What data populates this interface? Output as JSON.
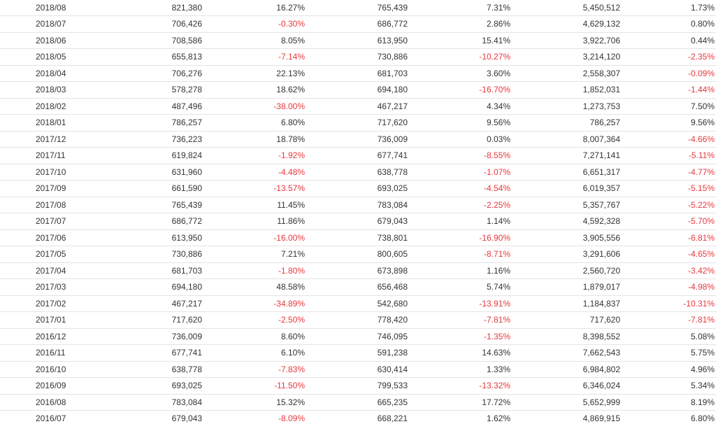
{
  "colors": {
    "text": "#333333",
    "negative": "#e8383d",
    "border": "#e4e4e4"
  },
  "rows": [
    {
      "date": "2018/08",
      "v1": "821,380",
      "p1": "16.27%",
      "v2": "765,439",
      "p2": "7.31%",
      "v3": "5,450,512",
      "p3": "1.73%"
    },
    {
      "date": "2018/07",
      "v1": "706,426",
      "p1": "-0.30%",
      "v2": "686,772",
      "p2": "2.86%",
      "v3": "4,629,132",
      "p3": "0.80%"
    },
    {
      "date": "2018/06",
      "v1": "708,586",
      "p1": "8.05%",
      "v2": "613,950",
      "p2": "15.41%",
      "v3": "3,922,706",
      "p3": "0.44%"
    },
    {
      "date": "2018/05",
      "v1": "655,813",
      "p1": "-7.14%",
      "v2": "730,886",
      "p2": "-10.27%",
      "v3": "3,214,120",
      "p3": "-2.35%"
    },
    {
      "date": "2018/04",
      "v1": "706,276",
      "p1": "22.13%",
      "v2": "681,703",
      "p2": "3.60%",
      "v3": "2,558,307",
      "p3": "-0.09%"
    },
    {
      "date": "2018/03",
      "v1": "578,278",
      "p1": "18.62%",
      "v2": "694,180",
      "p2": "-16.70%",
      "v3": "1,852,031",
      "p3": "-1.44%"
    },
    {
      "date": "2018/02",
      "v1": "487,496",
      "p1": "-38.00%",
      "v2": "467,217",
      "p2": "4.34%",
      "v3": "1,273,753",
      "p3": "7.50%"
    },
    {
      "date": "2018/01",
      "v1": "786,257",
      "p1": "6.80%",
      "v2": "717,620",
      "p2": "9.56%",
      "v3": "786,257",
      "p3": "9.56%"
    },
    {
      "date": "2017/12",
      "v1": "736,223",
      "p1": "18.78%",
      "v2": "736,009",
      "p2": "0.03%",
      "v3": "8,007,364",
      "p3": "-4.66%"
    },
    {
      "date": "2017/11",
      "v1": "619,824",
      "p1": "-1.92%",
      "v2": "677,741",
      "p2": "-8.55%",
      "v3": "7,271,141",
      "p3": "-5.11%"
    },
    {
      "date": "2017/10",
      "v1": "631,960",
      "p1": "-4.48%",
      "v2": "638,778",
      "p2": "-1.07%",
      "v3": "6,651,317",
      "p3": "-4.77%"
    },
    {
      "date": "2017/09",
      "v1": "661,590",
      "p1": "-13.57%",
      "v2": "693,025",
      "p2": "-4.54%",
      "v3": "6,019,357",
      "p3": "-5.15%"
    },
    {
      "date": "2017/08",
      "v1": "765,439",
      "p1": "11.45%",
      "v2": "783,084",
      "p2": "-2.25%",
      "v3": "5,357,767",
      "p3": "-5.22%"
    },
    {
      "date": "2017/07",
      "v1": "686,772",
      "p1": "11.86%",
      "v2": "679,043",
      "p2": "1.14%",
      "v3": "4,592,328",
      "p3": "-5.70%"
    },
    {
      "date": "2017/06",
      "v1": "613,950",
      "p1": "-16.00%",
      "v2": "738,801",
      "p2": "-16.90%",
      "v3": "3,905,556",
      "p3": "-6.81%"
    },
    {
      "date": "2017/05",
      "v1": "730,886",
      "p1": "7.21%",
      "v2": "800,605",
      "p2": "-8.71%",
      "v3": "3,291,606",
      "p3": "-4.65%"
    },
    {
      "date": "2017/04",
      "v1": "681,703",
      "p1": "-1.80%",
      "v2": "673,898",
      "p2": "1.16%",
      "v3": "2,560,720",
      "p3": "-3.42%"
    },
    {
      "date": "2017/03",
      "v1": "694,180",
      "p1": "48.58%",
      "v2": "656,468",
      "p2": "5.74%",
      "v3": "1,879,017",
      "p3": "-4.98%"
    },
    {
      "date": "2017/02",
      "v1": "467,217",
      "p1": "-34.89%",
      "v2": "542,680",
      "p2": "-13.91%",
      "v3": "1,184,837",
      "p3": "-10.31%"
    },
    {
      "date": "2017/01",
      "v1": "717,620",
      "p1": "-2.50%",
      "v2": "778,420",
      "p2": "-7.81%",
      "v3": "717,620",
      "p3": "-7.81%"
    },
    {
      "date": "2016/12",
      "v1": "736,009",
      "p1": "8.60%",
      "v2": "746,095",
      "p2": "-1.35%",
      "v3": "8,398,552",
      "p3": "5.08%"
    },
    {
      "date": "2016/11",
      "v1": "677,741",
      "p1": "6.10%",
      "v2": "591,238",
      "p2": "14.63%",
      "v3": "7,662,543",
      "p3": "5.75%"
    },
    {
      "date": "2016/10",
      "v1": "638,778",
      "p1": "-7.83%",
      "v2": "630,414",
      "p2": "1.33%",
      "v3": "6,984,802",
      "p3": "4.96%"
    },
    {
      "date": "2016/09",
      "v1": "693,025",
      "p1": "-11.50%",
      "v2": "799,533",
      "p2": "-13.32%",
      "v3": "6,346,024",
      "p3": "5.34%"
    },
    {
      "date": "2016/08",
      "v1": "783,084",
      "p1": "15.32%",
      "v2": "665,235",
      "p2": "17.72%",
      "v3": "5,652,999",
      "p3": "8.19%"
    },
    {
      "date": "2016/07",
      "v1": "679,043",
      "p1": "-8.09%",
      "v2": "668,221",
      "p2": "1.62%",
      "v3": "4,869,915",
      "p3": "6.80%"
    }
  ]
}
